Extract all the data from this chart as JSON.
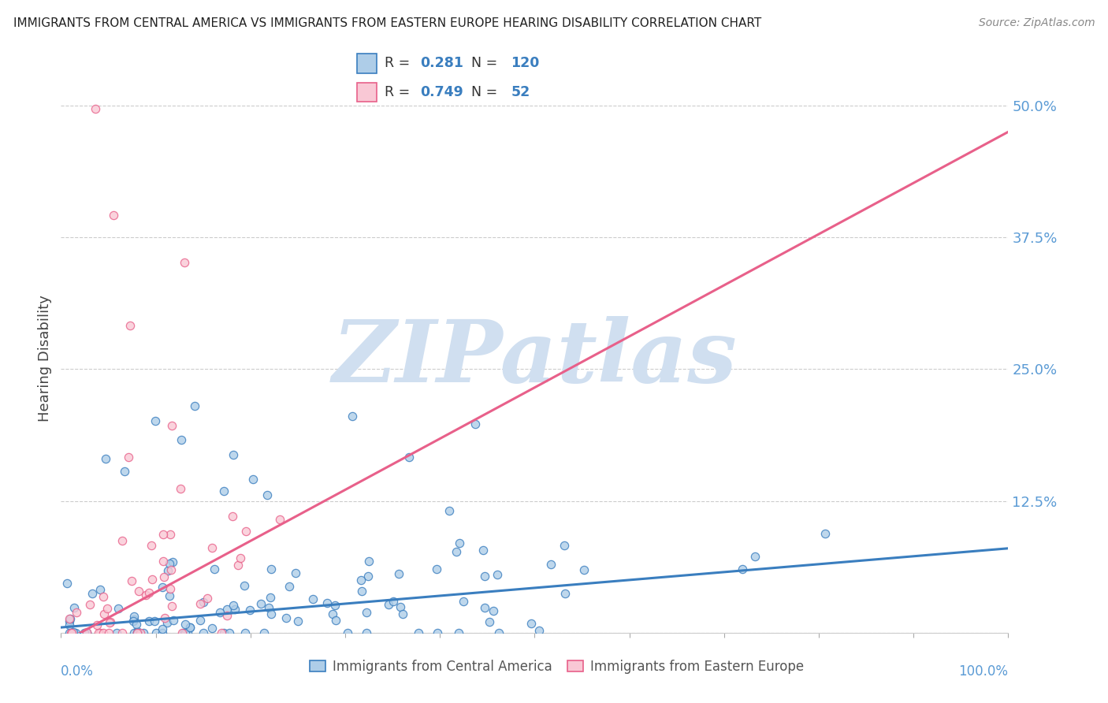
{
  "title": "IMMIGRANTS FROM CENTRAL AMERICA VS IMMIGRANTS FROM EASTERN EUROPE HEARING DISABILITY CORRELATION CHART",
  "source": "Source: ZipAtlas.com",
  "xlabel_blue": "Immigrants from Central America",
  "xlabel_pink": "Immigrants from Eastern Europe",
  "ylabel": "Hearing Disability",
  "blue_R": 0.281,
  "blue_N": 120,
  "pink_R": 0.749,
  "pink_N": 52,
  "blue_color": "#6baed6",
  "pink_color": "#fa9fb5",
  "blue_line_color": "#3a7ebf",
  "pink_line_color": "#e8608a",
  "blue_scatter_fill": "#aecde8",
  "pink_scatter_fill": "#f9c8d5",
  "title_color": "#222222",
  "axis_label_color": "#5b9bd5",
  "watermark_color": "#d0dff0",
  "watermark_text": "ZIPatlas",
  "yticks": [
    0.0,
    0.125,
    0.25,
    0.375,
    0.5
  ],
  "ytick_labels": [
    "",
    "12.5%",
    "25.0%",
    "37.5%",
    "50.0%"
  ],
  "xtick_labels_bottom": [
    "0.0%",
    "100.0%"
  ],
  "xlim": [
    0.0,
    1.0
  ],
  "ylim": [
    0.0,
    0.52
  ],
  "blue_slope": 0.075,
  "blue_intercept": 0.005,
  "pink_slope": 0.485,
  "pink_intercept": -0.01,
  "background_color": "#ffffff",
  "grid_color": "#cccccc",
  "legend_text_color": "#333333",
  "legend_value_color": "#3a7ebf"
}
